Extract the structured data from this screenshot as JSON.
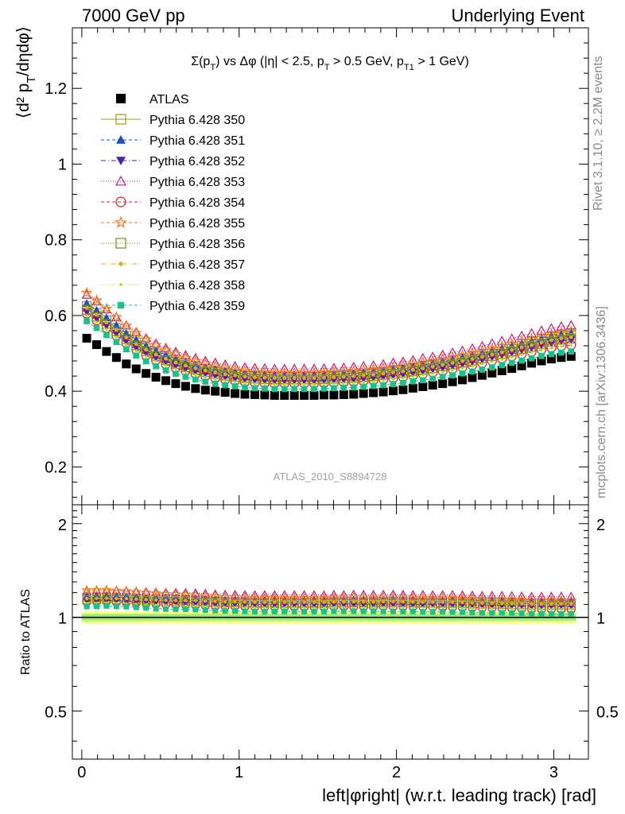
{
  "header": {
    "left": "7000 GeV pp",
    "right": "Underlying Event"
  },
  "side_labels": {
    "rivet": "Rivet 3.1.10, ≥ 2.2M events",
    "mcplots": "mcplots.cern.ch [arXiv:1306.3436]"
  },
  "chart_data": [
    {
      "type": "scatter",
      "title": "Σ(p_T) vs Δφ (|η| < 2.5, p_T > 0.5 GeV, p_T1 > 1 GeV)",
      "watermark": "ATLAS_2010_S8894728",
      "ylabel": "⟨d² p_T/dηdφ⟩",
      "xlabel": "",
      "xlim": [
        -0.06,
        3.22
      ],
      "ylim": [
        0.1,
        1.36
      ],
      "yticks": [
        0.2,
        0.4,
        0.6,
        0.8,
        1,
        1.2
      ],
      "ytick_labels": [
        "0.2",
        "0.4",
        "0.6",
        "0.8",
        "1",
        "1.2"
      ],
      "legend_position": "top-left",
      "x": [
        0.0314,
        0.0942,
        0.157,
        0.2199,
        0.2827,
        0.3456,
        0.4084,
        0.4712,
        0.5341,
        0.5969,
        0.6597,
        0.7226,
        0.7854,
        0.8482,
        0.9111,
        0.9739,
        1.0367,
        1.0996,
        1.1624,
        1.2252,
        1.2881,
        1.3509,
        1.4137,
        1.4765,
        1.5394,
        1.6022,
        1.665,
        1.7279,
        1.7907,
        1.8535,
        1.9164,
        1.9792,
        2.042,
        2.1049,
        2.1677,
        2.2305,
        2.2934,
        2.3562,
        2.419,
        2.4819,
        2.5447,
        2.6075,
        2.6704,
        2.7332,
        2.796,
        2.8589,
        2.9217,
        2.9845,
        3.0474,
        3.1102
      ],
      "series": [
        {
          "name": "ATLAS",
          "color": "#000000",
          "marker": "square-filled",
          "dash": "none",
          "values": [
            0.54,
            0.523,
            0.505,
            0.489,
            0.472,
            0.459,
            0.447,
            0.437,
            0.428,
            0.42,
            0.413,
            0.407,
            0.403,
            0.4,
            0.397,
            0.394,
            0.392,
            0.391,
            0.39,
            0.389,
            0.389,
            0.389,
            0.389,
            0.389,
            0.39,
            0.39,
            0.391,
            0.392,
            0.394,
            0.396,
            0.398,
            0.401,
            0.404,
            0.408,
            0.412,
            0.416,
            0.42,
            0.425,
            0.43,
            0.436,
            0.442,
            0.448,
            0.454,
            0.46,
            0.467,
            0.474,
            0.48,
            0.485,
            0.489,
            0.492
          ]
        },
        {
          "name": "Pythia 6.428 350",
          "color": "#9a9a1e",
          "marker": "square-open",
          "dash": "none",
          "values": [
            0.625,
            0.607,
            0.587,
            0.567,
            0.546,
            0.529,
            0.513,
            0.5,
            0.489,
            0.479,
            0.47,
            0.462,
            0.456,
            0.451,
            0.446,
            0.443,
            0.44,
            0.438,
            0.437,
            0.436,
            0.436,
            0.436,
            0.436,
            0.436,
            0.437,
            0.438,
            0.439,
            0.44,
            0.442,
            0.445,
            0.447,
            0.451,
            0.454,
            0.458,
            0.462,
            0.467,
            0.471,
            0.476,
            0.482,
            0.487,
            0.493,
            0.5,
            0.506,
            0.512,
            0.519,
            0.526,
            0.533,
            0.539,
            0.544,
            0.547
          ]
        },
        {
          "name": "Pythia 6.428 351",
          "color": "#1f4fbf",
          "marker": "triangle-up-filled",
          "dash": "4,3",
          "values": [
            0.632,
            0.614,
            0.594,
            0.574,
            0.553,
            0.536,
            0.52,
            0.507,
            0.496,
            0.486,
            0.477,
            0.469,
            0.463,
            0.458,
            0.453,
            0.45,
            0.447,
            0.445,
            0.444,
            0.443,
            0.443,
            0.443,
            0.443,
            0.443,
            0.444,
            0.445,
            0.446,
            0.447,
            0.449,
            0.452,
            0.454,
            0.458,
            0.461,
            0.465,
            0.469,
            0.474,
            0.478,
            0.483,
            0.489,
            0.494,
            0.5,
            0.507,
            0.513,
            0.519,
            0.526,
            0.533,
            0.54,
            0.546,
            0.551,
            0.554
          ]
        },
        {
          "name": "Pythia 6.428 352",
          "color": "#4b1fb0",
          "marker": "triangle-down-filled",
          "dash": "6,3,1,3",
          "values": [
            0.61,
            0.592,
            0.573,
            0.553,
            0.533,
            0.516,
            0.501,
            0.489,
            0.478,
            0.468,
            0.46,
            0.453,
            0.447,
            0.442,
            0.438,
            0.435,
            0.432,
            0.43,
            0.429,
            0.428,
            0.428,
            0.428,
            0.428,
            0.428,
            0.429,
            0.43,
            0.431,
            0.432,
            0.434,
            0.436,
            0.439,
            0.442,
            0.445,
            0.449,
            0.453,
            0.458,
            0.462,
            0.467,
            0.472,
            0.478,
            0.484,
            0.49,
            0.496,
            0.502,
            0.509,
            0.515,
            0.522,
            0.528,
            0.533,
            0.536
          ]
        },
        {
          "name": "Pythia 6.428 353",
          "color": "#b0208a",
          "marker": "triangle-up-open",
          "dash": "1,2",
          "values": [
            0.655,
            0.637,
            0.616,
            0.595,
            0.574,
            0.556,
            0.54,
            0.526,
            0.514,
            0.504,
            0.495,
            0.487,
            0.48,
            0.475,
            0.47,
            0.466,
            0.463,
            0.461,
            0.46,
            0.459,
            0.459,
            0.459,
            0.459,
            0.459,
            0.46,
            0.461,
            0.462,
            0.464,
            0.466,
            0.468,
            0.471,
            0.475,
            0.478,
            0.482,
            0.487,
            0.491,
            0.496,
            0.502,
            0.507,
            0.513,
            0.519,
            0.526,
            0.533,
            0.539,
            0.546,
            0.553,
            0.56,
            0.566,
            0.571,
            0.574
          ]
        },
        {
          "name": "Pythia 6.428 354",
          "color": "#e0142d",
          "marker": "circle-open",
          "dash": "4,3",
          "values": [
            0.605,
            0.587,
            0.567,
            0.547,
            0.527,
            0.51,
            0.495,
            0.482,
            0.471,
            0.461,
            0.453,
            0.445,
            0.439,
            0.434,
            0.43,
            0.427,
            0.424,
            0.422,
            0.421,
            0.42,
            0.42,
            0.42,
            0.42,
            0.42,
            0.421,
            0.422,
            0.423,
            0.424,
            0.426,
            0.428,
            0.431,
            0.434,
            0.437,
            0.441,
            0.445,
            0.449,
            0.453,
            0.458,
            0.463,
            0.468,
            0.474,
            0.48,
            0.486,
            0.492,
            0.498,
            0.504,
            0.51,
            0.515,
            0.519,
            0.522
          ]
        },
        {
          "name": "Pythia 6.428 355",
          "color": "#ee7a1e",
          "marker": "star-open",
          "dash": "4,3",
          "values": [
            0.66,
            0.64,
            0.618,
            0.596,
            0.573,
            0.554,
            0.537,
            0.522,
            0.509,
            0.498,
            0.488,
            0.479,
            0.472,
            0.466,
            0.461,
            0.457,
            0.454,
            0.451,
            0.45,
            0.449,
            0.449,
            0.449,
            0.449,
            0.449,
            0.45,
            0.451,
            0.452,
            0.454,
            0.456,
            0.458,
            0.461,
            0.464,
            0.468,
            0.472,
            0.476,
            0.48,
            0.485,
            0.49,
            0.495,
            0.501,
            0.507,
            0.513,
            0.519,
            0.525,
            0.532,
            0.538,
            0.545,
            0.551,
            0.555,
            0.558
          ]
        },
        {
          "name": "Pythia 6.428 356",
          "color": "#7a8a12",
          "marker": "square-open",
          "dash": "1,2",
          "values": [
            0.615,
            0.597,
            0.578,
            0.558,
            0.538,
            0.521,
            0.506,
            0.493,
            0.482,
            0.472,
            0.464,
            0.457,
            0.451,
            0.446,
            0.441,
            0.438,
            0.435,
            0.433,
            0.432,
            0.431,
            0.431,
            0.431,
            0.431,
            0.431,
            0.432,
            0.433,
            0.434,
            0.436,
            0.438,
            0.44,
            0.443,
            0.446,
            0.449,
            0.453,
            0.457,
            0.461,
            0.466,
            0.471,
            0.476,
            0.481,
            0.487,
            0.493,
            0.499,
            0.505,
            0.512,
            0.518,
            0.525,
            0.531,
            0.536,
            0.539
          ]
        },
        {
          "name": "Pythia 6.428 357",
          "color": "#d4b41e",
          "marker": "dot",
          "dash": "6,3,1,3",
          "values": [
            0.62,
            0.602,
            0.582,
            0.562,
            0.542,
            0.525,
            0.51,
            0.497,
            0.486,
            0.476,
            0.468,
            0.461,
            0.455,
            0.45,
            0.445,
            0.442,
            0.439,
            0.437,
            0.436,
            0.435,
            0.435,
            0.435,
            0.435,
            0.435,
            0.436,
            0.437,
            0.438,
            0.44,
            0.442,
            0.444,
            0.447,
            0.45,
            0.453,
            0.457,
            0.461,
            0.465,
            0.47,
            0.475,
            0.48,
            0.485,
            0.491,
            0.497,
            0.503,
            0.509,
            0.516,
            0.522,
            0.529,
            0.535,
            0.54,
            0.543
          ]
        },
        {
          "name": "Pythia 6.428 358",
          "color": "#c2d21a",
          "marker": "dot-small",
          "dash": "1,2",
          "values": [
            0.6,
            0.582,
            0.563,
            0.543,
            0.523,
            0.507,
            0.492,
            0.479,
            0.468,
            0.459,
            0.45,
            0.443,
            0.437,
            0.432,
            0.428,
            0.425,
            0.422,
            0.42,
            0.419,
            0.418,
            0.418,
            0.418,
            0.418,
            0.418,
            0.419,
            0.42,
            0.421,
            0.422,
            0.424,
            0.426,
            0.429,
            0.432,
            0.435,
            0.439,
            0.443,
            0.447,
            0.451,
            0.456,
            0.461,
            0.466,
            0.472,
            0.478,
            0.484,
            0.49,
            0.496,
            0.502,
            0.508,
            0.514,
            0.518,
            0.521
          ]
        },
        {
          "name": "Pythia 6.428 359",
          "color": "#1dbf8a",
          "marker": "square-filled-small",
          "dash": "4,3",
          "values": [
            0.585,
            0.567,
            0.549,
            0.53,
            0.511,
            0.494,
            0.479,
            0.466,
            0.455,
            0.446,
            0.438,
            0.431,
            0.425,
            0.42,
            0.416,
            0.413,
            0.41,
            0.408,
            0.407,
            0.406,
            0.406,
            0.406,
            0.406,
            0.406,
            0.407,
            0.408,
            0.409,
            0.41,
            0.412,
            0.414,
            0.416,
            0.419,
            0.422,
            0.426,
            0.429,
            0.433,
            0.438,
            0.442,
            0.447,
            0.452,
            0.457,
            0.463,
            0.469,
            0.475,
            0.481,
            0.487,
            0.493,
            0.498,
            0.502,
            0.505
          ]
        }
      ]
    },
    {
      "type": "scatter",
      "title": "",
      "ylabel": "Ratio to ATLAS",
      "xlabel": "left|φright| (w.r.t. leading track) [rad]",
      "xlim": [
        -0.06,
        3.22
      ],
      "ylim": [
        0.35,
        2.3
      ],
      "yscale": "log",
      "yticks": [
        0.5,
        1,
        2
      ],
      "ytick_labels": [
        "0.5",
        "1",
        "2"
      ],
      "xticks": [
        0,
        1,
        2,
        3
      ],
      "xtick_labels": [
        "0",
        "1",
        "2",
        "3"
      ],
      "reference_line": 1,
      "uncertainty_bands": [
        {
          "lo": 0.955,
          "hi": 1.045,
          "color": "#ffff77"
        },
        {
          "lo": 0.975,
          "hi": 1.025,
          "color": "#99ee77"
        }
      ]
    }
  ]
}
